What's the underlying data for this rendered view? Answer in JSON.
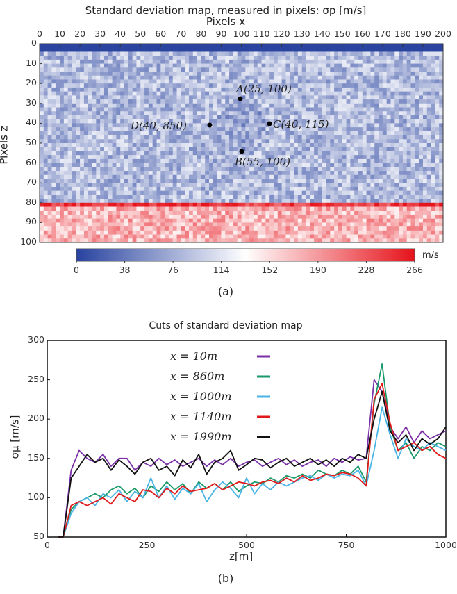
{
  "chart_data": [
    {
      "type": "heatmap",
      "title": "Standard deviation map, measured in pixels: σp [m/s]",
      "xlabel": "Pixels x",
      "ylabel": "Pixels z",
      "xlim": [
        0,
        200
      ],
      "ylim": [
        100,
        0
      ],
      "xticks": [
        "0",
        "10",
        "20",
        "30",
        "40",
        "50",
        "60",
        "70",
        "80",
        "90",
        "100",
        "110",
        "120",
        "130",
        "140",
        "150",
        "160",
        "170",
        "180",
        "190",
        "200"
      ],
      "yticks": [
        "0",
        "10",
        "20",
        "30",
        "40",
        "50",
        "60",
        "70",
        "80",
        "90",
        "100"
      ],
      "colorbar": {
        "ticks": [
          "0",
          "38",
          "76",
          "114",
          "152",
          "190",
          "228",
          "266"
        ],
        "unit": "m/s",
        "range": [
          0,
          266
        ],
        "colors": [
          "#2a44a0",
          "#ffffff",
          "#e6141c"
        ]
      },
      "regions": [
        {
          "z": [
            0,
            5
          ],
          "x": [
            0,
            200
          ],
          "value": 0
        },
        {
          "z": [
            5,
            80
          ],
          "x": [
            0,
            200
          ],
          "value": 85
        },
        {
          "z": [
            25,
            55
          ],
          "x": [
            85,
            115
          ],
          "value": 70,
          "shape": "diamond"
        },
        {
          "z": [
            80,
            83
          ],
          "x": [
            0,
            200
          ],
          "value": 250
        },
        {
          "z": [
            83,
            100
          ],
          "x": [
            0,
            200
          ],
          "value": 175
        }
      ],
      "annotations": [
        "A(25, 100)",
        "B(55, 100)",
        "C(40, 115)",
        "D(40, 850)"
      ],
      "caption": "(a)"
    },
    {
      "type": "line",
      "title": "Cuts of standard deviation map",
      "xlabel": "z[m]",
      "ylabel": "σμ [m/s]",
      "xlim": [
        0,
        1000
      ],
      "ylim": [
        50,
        300
      ],
      "xticks": [
        "0",
        "250",
        "500",
        "750",
        "1000"
      ],
      "yticks": [
        "50",
        "100",
        "150",
        "200",
        "250",
        "300"
      ],
      "legend": "top-left",
      "x": [
        0,
        20,
        40,
        60,
        80,
        100,
        120,
        140,
        160,
        180,
        200,
        220,
        240,
        260,
        280,
        300,
        320,
        340,
        360,
        380,
        400,
        420,
        440,
        460,
        480,
        500,
        520,
        540,
        560,
        580,
        600,
        620,
        640,
        660,
        680,
        700,
        720,
        740,
        760,
        780,
        800,
        820,
        840,
        860,
        880,
        900,
        920,
        940,
        960,
        980,
        1000
      ],
      "series": [
        {
          "name": "x = 10m",
          "color": "#7b2fa8",
          "values": [
            50,
            50,
            50,
            135,
            160,
            150,
            145,
            155,
            140,
            150,
            150,
            135,
            145,
            140,
            150,
            142,
            148,
            140,
            145,
            150,
            140,
            148,
            142,
            150,
            140,
            145,
            148,
            140,
            145,
            150,
            142,
            148,
            140,
            145,
            148,
            140,
            150,
            145,
            152,
            148,
            150,
            250,
            235,
            190,
            175,
            190,
            170,
            185,
            175,
            180,
            185
          ]
        },
        {
          "name": "x = 860m",
          "color": "#1a9a6a",
          "values": [
            50,
            50,
            50,
            85,
            95,
            100,
            105,
            100,
            110,
            115,
            105,
            112,
            100,
            115,
            108,
            120,
            110,
            118,
            105,
            120,
            112,
            118,
            110,
            120,
            108,
            115,
            120,
            118,
            125,
            120,
            128,
            125,
            130,
            125,
            135,
            130,
            128,
            135,
            130,
            140,
            120,
            220,
            270,
            190,
            160,
            170,
            150,
            165,
            160,
            170,
            165
          ]
        },
        {
          "name": "x = 1000m",
          "color": "#4ab4e6",
          "values": [
            50,
            50,
            50,
            80,
            95,
            100,
            90,
            105,
            100,
            110,
            95,
            108,
            100,
            125,
            100,
            115,
            98,
            112,
            105,
            118,
            95,
            110,
            120,
            112,
            100,
            125,
            105,
            118,
            110,
            120,
            115,
            120,
            125,
            128,
            122,
            130,
            125,
            130,
            128,
            135,
            115,
            160,
            215,
            180,
            150,
            175,
            165,
            160,
            170,
            165,
            160
          ]
        },
        {
          "name": "x = 1140m",
          "color": "#e01a1a",
          "values": [
            50,
            50,
            50,
            90,
            95,
            90,
            95,
            100,
            92,
            105,
            100,
            95,
            110,
            108,
            100,
            112,
            105,
            115,
            108,
            110,
            112,
            118,
            110,
            115,
            120,
            118,
            115,
            120,
            122,
            118,
            125,
            120,
            128,
            122,
            125,
            130,
            128,
            132,
            130,
            125,
            115,
            225,
            245,
            195,
            160,
            165,
            170,
            160,
            165,
            155,
            150
          ]
        },
        {
          "name": "x = 1990m",
          "color": "#111111",
          "values": [
            50,
            50,
            50,
            125,
            140,
            155,
            145,
            150,
            135,
            148,
            140,
            130,
            145,
            150,
            135,
            140,
            128,
            148,
            138,
            155,
            130,
            145,
            150,
            160,
            135,
            142,
            150,
            148,
            138,
            145,
            150,
            140,
            145,
            150,
            142,
            148,
            140,
            150,
            145,
            155,
            150,
            200,
            235,
            185,
            170,
            180,
            160,
            175,
            168,
            175,
            190
          ]
        }
      ],
      "caption": "(b)"
    }
  ]
}
